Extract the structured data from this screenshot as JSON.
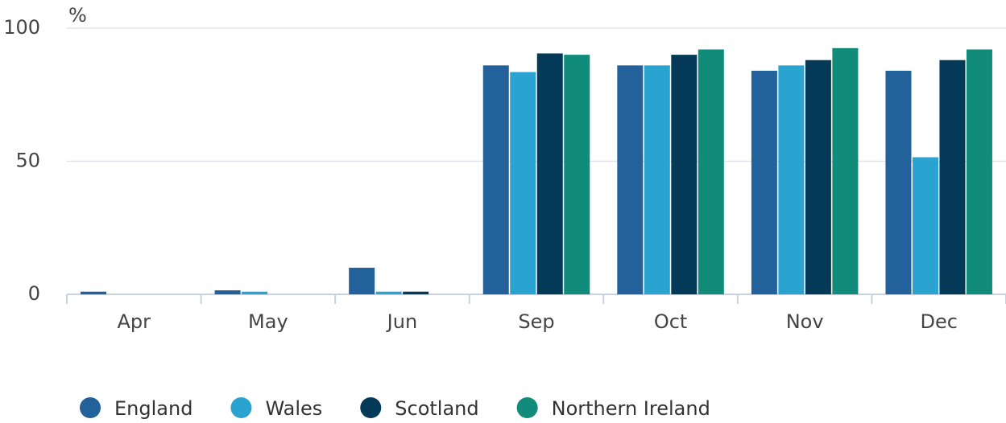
{
  "chart_data": {
    "type": "bar",
    "y_label": "%",
    "categories": [
      "Apr",
      "May",
      "Jun",
      "Sep",
      "Oct",
      "Nov",
      "Dec"
    ],
    "series": [
      {
        "name": "England",
        "color": "#23619a",
        "values": [
          1,
          1.5,
          10,
          86,
          86,
          84,
          84
        ]
      },
      {
        "name": "Wales",
        "color": "#2aa3d1",
        "values": [
          0,
          1,
          1,
          83.5,
          86,
          86,
          51.5
        ]
      },
      {
        "name": "Scotland",
        "color": "#043a57",
        "values": [
          0,
          0,
          1,
          90.5,
          90,
          88,
          88
        ]
      },
      {
        "name": "Northern Ireland",
        "color": "#118c7a",
        "values": [
          0,
          0,
          0,
          90,
          92,
          92.5,
          92
        ]
      }
    ],
    "ylim": [
      0,
      100
    ],
    "yticks": [
      0,
      50,
      100
    ],
    "grid": true,
    "legend": "bottom"
  }
}
